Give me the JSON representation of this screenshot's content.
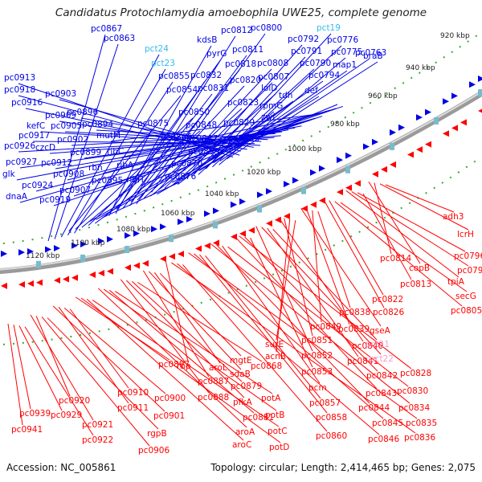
{
  "title": "Candidatus Protochlamydia amoebophila UWE25, complete genome",
  "footer": {
    "accession": "Accession: NC_005861",
    "summary": "Topology: circular; Length: 2,414,465 bp; Genes: 2,075"
  },
  "colors": {
    "forward": "#0000e6",
    "reverse": "#ff0000",
    "rna_forward": "#33bbee",
    "rna_reverse": "#ff99cc",
    "backbone": "#888888",
    "tick": "#33aa33"
  },
  "tick_labels": [
    "920 kbp",
    "940 kbp",
    "960 kbp",
    "980 kbp",
    "1000 kbp",
    "1020 kbp",
    "1040 kbp",
    "1060 kbp",
    "1080 kbp",
    "1100 kbp",
    "1120 kbp"
  ],
  "forward_labels": [
    "pc0867",
    "pc0863",
    "pct24",
    "pct23",
    "pc0855",
    "pc0854",
    "pc0850",
    "pc0848",
    "pc0866",
    "pc0847",
    "pc0859",
    "pc0870",
    "pc0876",
    "pc0875",
    "kdsB",
    "pyrG",
    "pc0832",
    "pc0831",
    "pc0812",
    "pc0811",
    "pc0818",
    "pc0820",
    "pc0823",
    "pc0829",
    "pc0833",
    "pc0800",
    "pc0808",
    "pc0807",
    "lolD",
    "rpmG",
    "zwf",
    "tdh",
    "pc0792",
    "pc0791",
    "pc0790",
    "pc0794",
    "def",
    "pct19",
    "pc0776",
    "pc0775",
    "map1",
    "pc0763",
    "braB",
    "pc0913",
    "pc0918",
    "pc0916",
    "pc0903",
    "pc0909",
    "pc0896",
    "kefC",
    "pc0917",
    "pc0905",
    "pc0894",
    "pc0926",
    "czcD",
    "pc0902",
    "pc0927",
    "pc0912",
    "pc0899",
    "glk",
    "pc0924",
    "pc0908",
    "pc0907",
    "dnaA",
    "pc0919",
    "mutM",
    "ribC",
    "rbn",
    "ribA",
    "pc0895",
    "ribH"
  ],
  "reverse_labels": [
    "adh3",
    "lcrH",
    "pc0814",
    "copB",
    "pc0813",
    "pc0796",
    "pc0797",
    "tpiA",
    "secG",
    "pc0805",
    "pc0822",
    "pc0826",
    "pc0838",
    "pc0849",
    "pc0839",
    "gseA",
    "surE",
    "acnB",
    "pc0851",
    "pc0840",
    "pct21",
    "pc0841",
    "pct22",
    "pc0852",
    "pc0853",
    "pc0842",
    "pc0828",
    "pc0843",
    "pc0830",
    "pcm",
    "pc0844",
    "pc0834",
    "pc0857",
    "pc0858",
    "pc0845",
    "pc0835",
    "pc0860",
    "pc0846",
    "pc0836",
    "rbp",
    "mgtE",
    "aroL",
    "sdaB",
    "pc0887",
    "pc0868",
    "pc0879",
    "pfkA",
    "pc0888",
    "potA",
    "pc0881",
    "potB",
    "aroA",
    "potC",
    "aroC",
    "potD",
    "pc0897",
    "pc0910",
    "pc0900",
    "pc0911",
    "pc0901",
    "rgpB",
    "pc0906",
    "pc0920",
    "pc0921",
    "pc0922",
    "pc0929",
    "pc0939",
    "pc0941"
  ]
}
